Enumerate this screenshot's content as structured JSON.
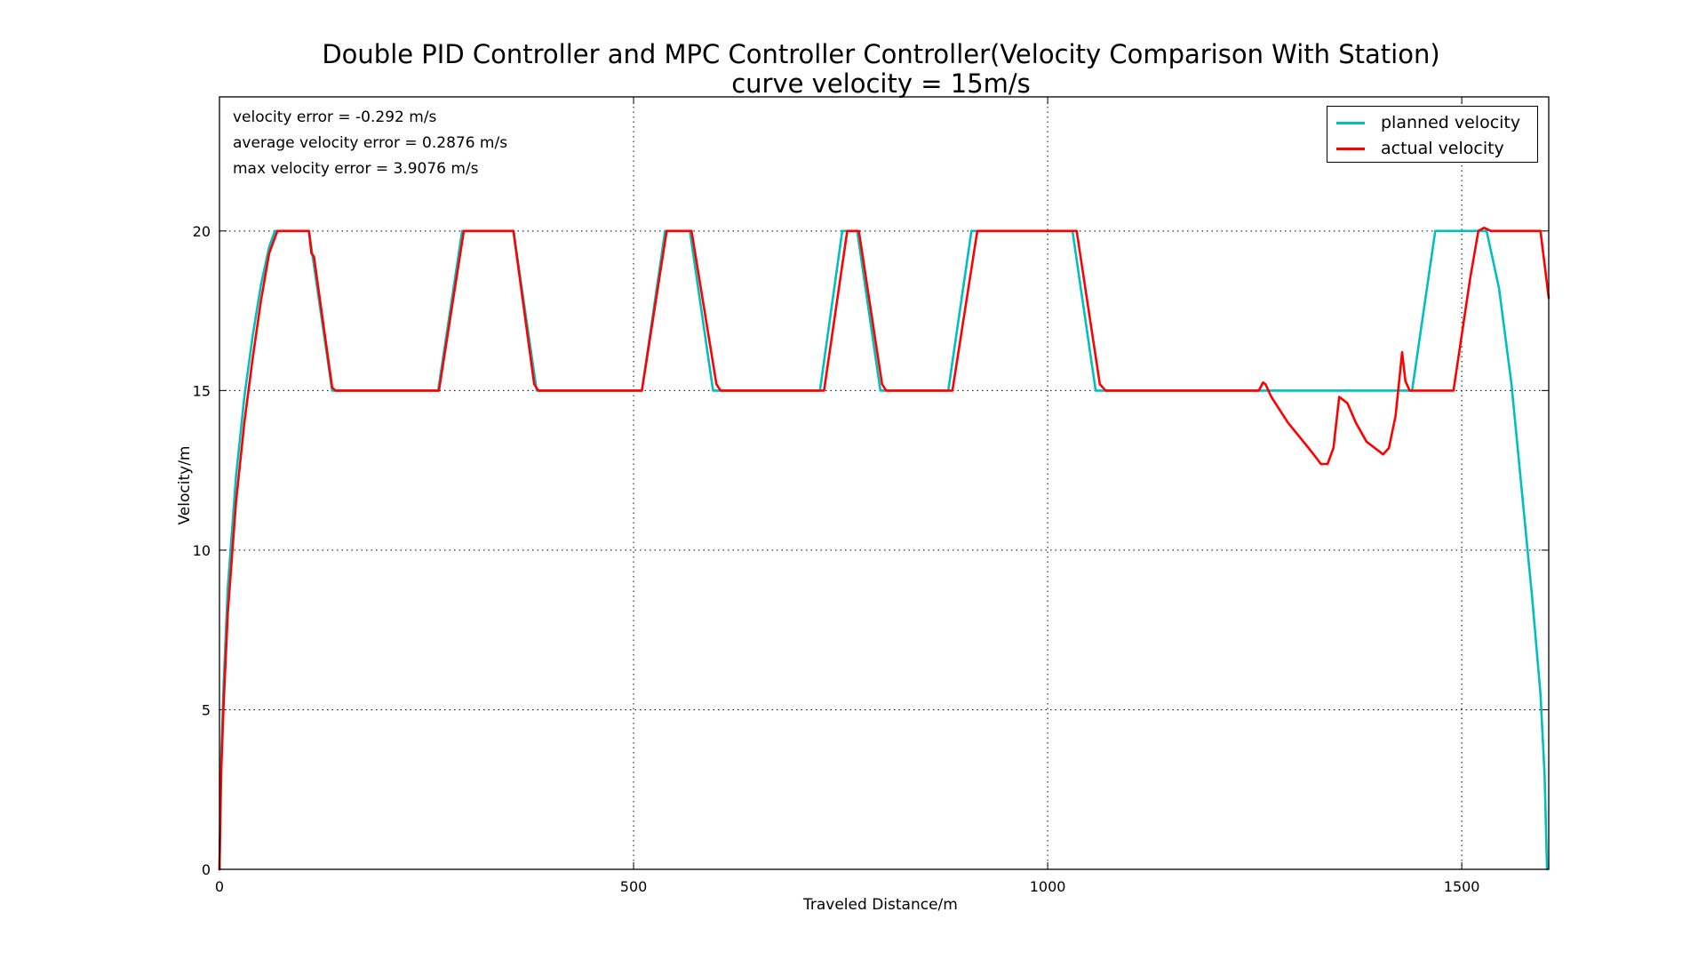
{
  "chart_data": {
    "type": "line",
    "title": "Double PID Controller and MPC Controller Controller(Velocity Comparison With Station)",
    "subtitle": "curve velocity = 15m/s",
    "xlabel": "Traveled Distance/m",
    "ylabel": "Velocity/m",
    "xlim": [
      0,
      1605
    ],
    "ylim": [
      0,
      24.2
    ],
    "xticks": [
      0,
      500,
      1000,
      1500
    ],
    "yticks": [
      0,
      5,
      10,
      15,
      20
    ],
    "grid": true,
    "legend_position": "top-right",
    "annotations": [
      "velocity error = -0.292 m/s",
      "average velocity error = 0.2876 m/s",
      "max velocity error = 3.9076 m/s"
    ],
    "series": [
      {
        "name": "planned velocity",
        "color": "#00bfbf",
        "x": [
          0,
          2,
          5,
          10,
          20,
          30,
          40,
          50,
          60,
          67,
          108,
          136,
          264,
          293,
          355,
          383,
          510,
          538,
          568,
          596,
          725,
          752,
          770,
          798,
          880,
          908,
          1030,
          1058,
          1440,
          1468,
          1530,
          1545,
          1560,
          1575,
          1585,
          1595,
          1600,
          1603
        ],
        "y": [
          0,
          3.5,
          5.8,
          8.8,
          12.3,
          14.8,
          16.7,
          18.3,
          19.5,
          20,
          20,
          15,
          15,
          20,
          20,
          15,
          15,
          20,
          20,
          15,
          15,
          20,
          20,
          15,
          15,
          20,
          20,
          15,
          15,
          20,
          20,
          18.2,
          15.2,
          11.2,
          8.5,
          5.5,
          3.0,
          0
        ]
      },
      {
        "name": "actual velocity",
        "color": "#ff0000",
        "x": [
          0,
          2,
          5,
          10,
          20,
          30,
          40,
          50,
          60,
          70,
          108,
          111,
          114,
          136,
          140,
          265,
          295,
          355,
          358,
          380,
          385,
          510,
          540,
          570,
          600,
          605,
          730,
          758,
          772,
          800,
          805,
          885,
          915,
          1035,
          1063,
          1070,
          1255,
          1260,
          1263,
          1270,
          1290,
          1315,
          1330,
          1338,
          1345,
          1352,
          1362,
          1372,
          1385,
          1405,
          1412,
          1420,
          1428,
          1432,
          1437,
          1450,
          1490,
          1510,
          1520,
          1527,
          1535,
          1595,
          1605
        ],
        "y": [
          0,
          3,
          5.2,
          8,
          11.5,
          14,
          16,
          17.8,
          19.3,
          20,
          20,
          19.3,
          19.2,
          15.1,
          15,
          15,
          20,
          20,
          19.4,
          15.2,
          15,
          15,
          20,
          20,
          15.2,
          15,
          15,
          20,
          20,
          15.2,
          15,
          15,
          20,
          20,
          15.2,
          15,
          15,
          15.25,
          15.2,
          14.8,
          14,
          13.2,
          12.7,
          12.7,
          13.2,
          14.8,
          14.6,
          14,
          13.4,
          13.0,
          13.2,
          14.2,
          16.2,
          15.3,
          15,
          15,
          15,
          18.5,
          20,
          20.1,
          20,
          20,
          17.9
        ]
      }
    ]
  }
}
